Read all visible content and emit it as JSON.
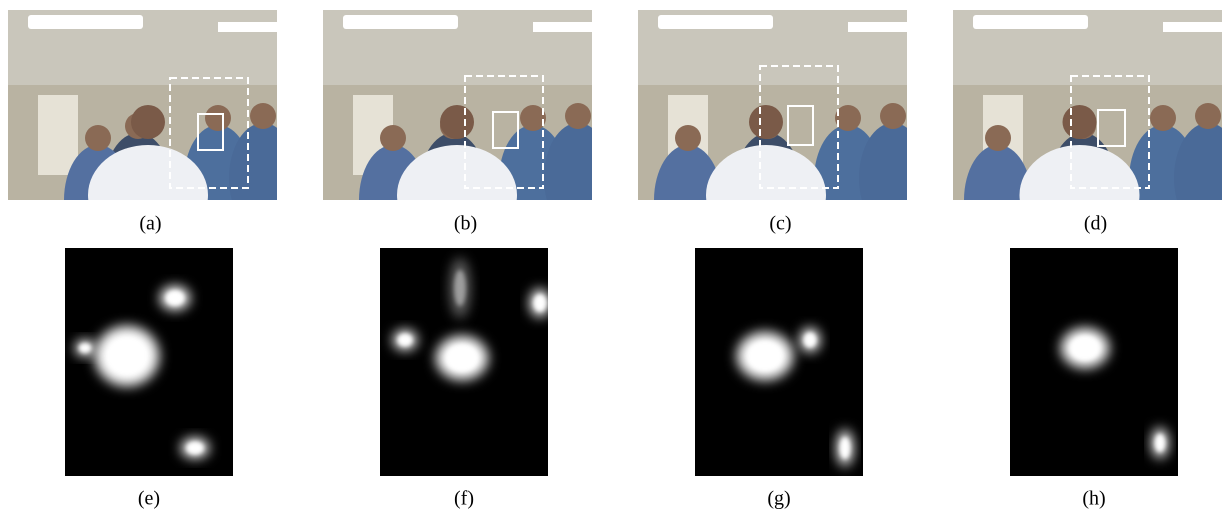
{
  "figure": {
    "photos": [
      {
        "label": "(a)"
      },
      {
        "label": "(b)"
      },
      {
        "label": "(c)"
      },
      {
        "label": "(d)"
      }
    ],
    "heatmaps": [
      {
        "label": "(e)"
      },
      {
        "label": "(f)"
      },
      {
        "label": "(g)"
      },
      {
        "label": "(h)"
      }
    ]
  }
}
